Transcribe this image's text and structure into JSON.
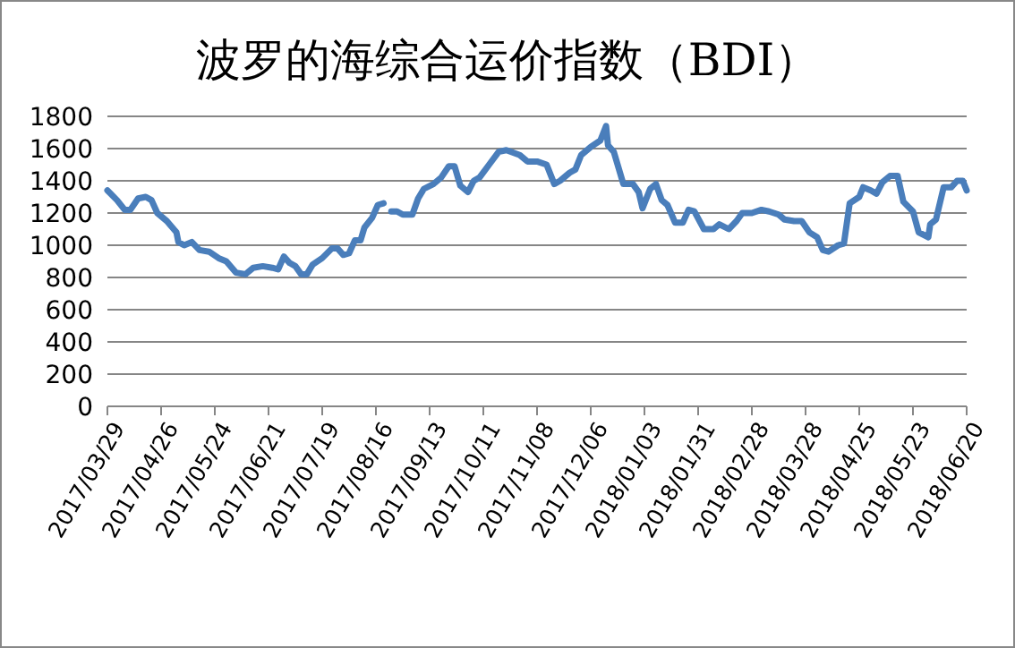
{
  "chart_data": {
    "type": "line",
    "title": "波罗的海综合运价指数（BDI）",
    "series": [
      {
        "color": "#4a7ebb",
        "x": [
          "2017-03-29",
          "2017-04-03",
          "2017-04-07",
          "2017-04-10",
          "2017-04-14",
          "2017-04-18",
          "2017-04-21",
          "2017-04-24",
          "2017-04-29",
          "2017-05-04",
          "2017-05-05",
          "2017-05-08",
          "2017-05-12",
          "2017-05-16",
          "2017-05-21",
          "2017-05-26",
          "2017-05-30",
          "2017-06-04",
          "2017-06-09",
          "2017-06-13",
          "2017-06-18",
          "2017-06-23",
          "2017-06-26",
          "2017-06-29",
          "2017-07-02",
          "2017-07-05",
          "2017-07-08",
          "2017-07-11",
          "2017-07-14",
          "2017-07-19",
          "2017-07-24",
          "2017-07-27",
          "2017-07-30",
          "2017-08-02",
          "2017-08-05",
          "2017-08-08",
          "2017-08-10",
          "2017-08-14",
          "2017-08-17",
          "2017-08-20"
        ],
        "values": [
          1340,
          1280,
          1220,
          1220,
          1290,
          1300,
          1280,
          1200,
          1150,
          1080,
          1020,
          1000,
          1020,
          970,
          960,
          920,
          900,
          830,
          820,
          860,
          870,
          860,
          850,
          930,
          890,
          870,
          820,
          820,
          880,
          920,
          980,
          980,
          940,
          950,
          1030,
          1030,
          1110,
          1170,
          1250,
          1260
        ]
      },
      {
        "color": "#4a7ebb",
        "x": [
          "2017-08-24",
          "2017-08-27",
          "2017-08-30",
          "2017-09-04",
          "2017-09-07",
          "2017-09-10",
          "2017-09-15",
          "2017-09-19",
          "2017-09-23",
          "2017-09-26",
          "2017-09-29",
          "2017-10-03",
          "2017-10-06",
          "2017-10-09",
          "2017-10-14",
          "2017-10-19",
          "2017-10-23",
          "2017-10-30",
          "2017-11-03",
          "2017-11-08",
          "2017-11-13",
          "2017-11-17",
          "2017-11-20",
          "2017-11-25",
          "2017-11-28",
          "2017-12-01",
          "2017-12-06",
          "2017-12-11",
          "2017-12-14",
          "2017-12-15",
          "2017-12-18",
          "2017-12-23",
          "2017-12-28",
          "2017-12-31",
          "2018-01-02",
          "2018-01-06",
          "2018-01-09",
          "2018-01-12",
          "2018-01-15",
          "2018-01-19",
          "2018-01-23",
          "2018-01-26",
          "2018-01-29",
          "2018-02-03",
          "2018-02-08",
          "2018-02-11",
          "2018-02-16",
          "2018-02-20",
          "2018-02-23",
          "2018-02-28",
          "2018-03-05",
          "2018-03-09",
          "2018-03-14",
          "2018-03-17",
          "2018-03-22",
          "2018-03-26",
          "2018-03-30",
          "2018-04-03",
          "2018-04-06",
          "2018-04-09",
          "2018-04-14",
          "2018-04-17",
          "2018-04-20",
          "2018-04-25",
          "2018-04-27",
          "2018-05-01",
          "2018-05-04",
          "2018-05-07",
          "2018-05-11",
          "2018-05-15",
          "2018-05-18",
          "2018-05-23",
          "2018-05-26",
          "2018-05-31",
          "2018-06-01",
          "2018-06-04",
          "2018-06-08",
          "2018-06-12",
          "2018-06-15",
          "2018-06-18",
          "2018-06-20"
        ],
        "values": [
          1210,
          1210,
          1190,
          1190,
          1290,
          1350,
          1380,
          1420,
          1490,
          1490,
          1370,
          1330,
          1400,
          1420,
          1500,
          1580,
          1590,
          1560,
          1520,
          1520,
          1500,
          1380,
          1400,
          1450,
          1470,
          1560,
          1610,
          1650,
          1740,
          1620,
          1580,
          1380,
          1380,
          1330,
          1230,
          1350,
          1380,
          1280,
          1250,
          1140,
          1140,
          1220,
          1210,
          1100,
          1100,
          1130,
          1100,
          1150,
          1200,
          1200,
          1220,
          1210,
          1190,
          1160,
          1150,
          1150,
          1080,
          1050,
          970,
          960,
          1000,
          1010,
          1260,
          1300,
          1360,
          1340,
          1320,
          1390,
          1430,
          1430,
          1270,
          1210,
          1080,
          1050,
          1130,
          1160,
          1360,
          1360,
          1400,
          1400,
          1340
        ]
      }
    ],
    "xlim": [
      "2017-03-29",
      "2018-06-20"
    ],
    "xticks": [
      {
        "value": "2017-03-29",
        "label": "2017/03/29"
      },
      {
        "value": "2017-04-26",
        "label": "2017/04/26"
      },
      {
        "value": "2017-05-24",
        "label": "2017/05/24"
      },
      {
        "value": "2017-06-21",
        "label": "2017/06/21"
      },
      {
        "value": "2017-07-19",
        "label": "2017/07/19"
      },
      {
        "value": "2017-08-16",
        "label": "2017/08/16"
      },
      {
        "value": "2017-09-13",
        "label": "2017/09/13"
      },
      {
        "value": "2017-10-11",
        "label": "2017/10/11"
      },
      {
        "value": "2017-11-08",
        "label": "2017/11/08"
      },
      {
        "value": "2017-12-06",
        "label": "2017/12/06"
      },
      {
        "value": "2018-01-03",
        "label": "2018/01/03"
      },
      {
        "value": "2018-01-31",
        "label": "2018/01/31"
      },
      {
        "value": "2018-02-28",
        "label": "2018/02/28"
      },
      {
        "value": "2018-03-28",
        "label": "2018/03/28"
      },
      {
        "value": "2018-04-25",
        "label": "2018/04/25"
      },
      {
        "value": "2018-05-23",
        "label": "2018/05/23"
      },
      {
        "value": "2018-06-20",
        "label": "2018/06/20"
      }
    ],
    "ylim": [
      0,
      1800
    ],
    "yticks": [
      0,
      200,
      400,
      600,
      800,
      1000,
      1200,
      1400,
      1600,
      1800
    ],
    "grid": "y"
  }
}
